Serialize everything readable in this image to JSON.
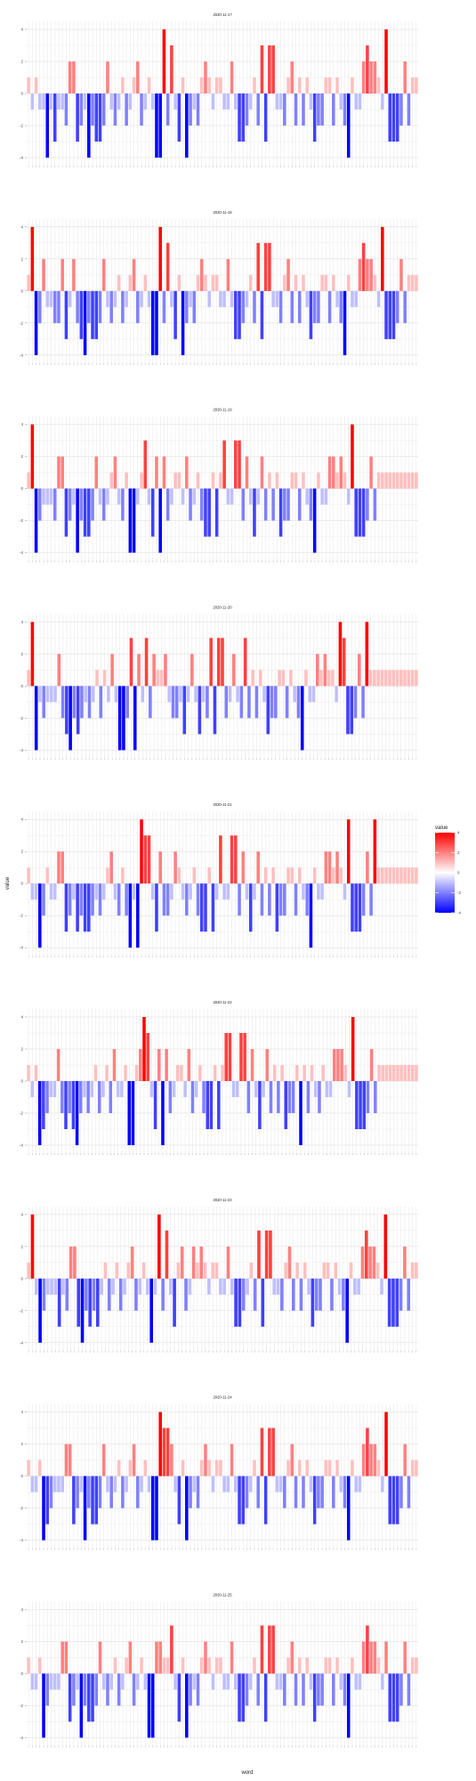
{
  "figure": {
    "xlabel": "word",
    "ylabel": "value",
    "legend": {
      "title": "value",
      "ticks": [
        4,
        2,
        0,
        -2,
        -4
      ],
      "position": "right",
      "low_color": "#0000ff",
      "mid_color": "#ffffff",
      "high_color": "#ff0000"
    }
  },
  "chart_data": [
    {
      "type": "bar",
      "title": "2020-11-17",
      "ylim": [
        -4.5,
        4.5
      ],
      "yticks": [
        4,
        2,
        0,
        -2,
        -4
      ],
      "grid": true,
      "categories_n": 104,
      "values": [
        1,
        -1,
        1,
        -1,
        -1,
        -4,
        -1,
        -3,
        -1,
        -1,
        -2,
        2,
        2,
        -3,
        -2,
        -1,
        -4,
        -2,
        -3,
        -3,
        -2,
        2,
        -1,
        -2,
        -1,
        1,
        -2,
        -1,
        1,
        2,
        -2,
        -1,
        1,
        -1,
        -4,
        -4,
        4,
        -2,
        3,
        -1,
        -3,
        1,
        -4,
        -2,
        -1,
        -2,
        1,
        2,
        1,
        -1,
        1,
        1,
        -1,
        -1,
        2,
        -1,
        -3,
        -3,
        -2,
        -1,
        1,
        -2,
        3,
        -3,
        3,
        3,
        -1,
        -1,
        -2,
        1,
        2,
        -2,
        1,
        -2,
        1,
        -1,
        -3,
        -2,
        -2,
        1,
        1,
        -2,
        1,
        -1,
        -2,
        -4,
        1,
        -1,
        -1,
        2,
        3,
        2,
        2,
        1,
        -1,
        4,
        -3,
        -3,
        -3,
        -2,
        2,
        -2,
        1,
        1
      ]
    },
    {
      "type": "bar",
      "title": "2020-11-18",
      "ylim": [
        -4.5,
        4.5
      ],
      "yticks": [
        4,
        2,
        0,
        -2,
        -4
      ],
      "grid": true,
      "categories_n": 104,
      "values": [
        1,
        4,
        -4,
        -2,
        2,
        -1,
        -1,
        -2,
        -2,
        2,
        -3,
        -1,
        2,
        -2,
        -3,
        -4,
        -2,
        -3,
        -3,
        -2,
        2,
        -1,
        -2,
        -1,
        1,
        -2,
        -1,
        1,
        2,
        -2,
        -1,
        1,
        -1,
        -4,
        -4,
        4,
        -2,
        3,
        -1,
        -3,
        1,
        -4,
        -2,
        -1,
        -2,
        1,
        2,
        1,
        -1,
        1,
        1,
        -1,
        -1,
        2,
        -1,
        -3,
        -3,
        -2,
        -1,
        1,
        -2,
        3,
        -3,
        3,
        3,
        -1,
        -1,
        -2,
        1,
        2,
        -2,
        1,
        -2,
        1,
        -1,
        -3,
        -2,
        -2,
        1,
        1,
        -2,
        1,
        -1,
        -2,
        -4,
        1,
        -1,
        -1,
        2,
        3,
        2,
        2,
        1,
        -1,
        4,
        -3,
        -3,
        -3,
        -2,
        2,
        -2,
        1,
        1,
        1
      ]
    },
    {
      "type": "bar",
      "title": "2020-11-19",
      "ylim": [
        -4.5,
        4.5
      ],
      "yticks": [
        4,
        2,
        0,
        -2,
        -4
      ],
      "grid": true,
      "categories_n": 104,
      "values": [
        1,
        4,
        -4,
        -2,
        -1,
        -1,
        -1,
        -2,
        2,
        2,
        -3,
        -2,
        -1,
        -4,
        -2,
        -3,
        -3,
        -2,
        2,
        -1,
        -2,
        -1,
        1,
        2,
        -1,
        -2,
        1,
        -4,
        -4,
        -1,
        1,
        3,
        -1,
        -3,
        2,
        -4,
        2,
        -2,
        -1,
        1,
        1,
        -1,
        2,
        -2,
        -1,
        1,
        -2,
        -3,
        -3,
        1,
        -3,
        1,
        3,
        -1,
        -1,
        3,
        3,
        -2,
        2,
        -1,
        -3,
        -1,
        2,
        -2,
        1,
        -2,
        1,
        -3,
        -2,
        -2,
        1,
        1,
        -2,
        1,
        -1,
        -2,
        -4,
        1,
        -1,
        -1,
        2,
        2,
        1,
        2,
        1,
        -1,
        4,
        -3,
        -3,
        -3,
        -2,
        2,
        -2,
        1,
        1,
        1,
        1,
        1,
        1,
        1,
        1,
        1,
        1,
        1
      ]
    },
    {
      "type": "bar",
      "title": "2020-11-20",
      "ylim": [
        -4.5,
        4.5
      ],
      "yticks": [
        4,
        2,
        0,
        -2,
        -4
      ],
      "grid": true,
      "categories_n": 104,
      "values": [
        1,
        4,
        -4,
        -1,
        -2,
        -1,
        -1,
        -1,
        2,
        -2,
        -3,
        -4,
        -2,
        -3,
        -2,
        -1,
        -2,
        -1,
        1,
        -2,
        1,
        -1,
        2,
        -1,
        -4,
        -4,
        -2,
        3,
        -4,
        2,
        -1,
        3,
        -2,
        2,
        1,
        1,
        2,
        -1,
        -2,
        -2,
        -1,
        -3,
        -1,
        2,
        -1,
        -3,
        -1,
        -2,
        3,
        -3,
        3,
        3,
        -2,
        -1,
        2,
        -1,
        -2,
        3,
        -2,
        1,
        -2,
        1,
        -1,
        -3,
        -2,
        -2,
        1,
        1,
        -2,
        1,
        -1,
        -2,
        -4,
        1,
        -1,
        -1,
        2,
        1,
        2,
        1,
        1,
        -1,
        4,
        3,
        -3,
        -3,
        -2,
        2,
        -2,
        4,
        1,
        1,
        1,
        1,
        1,
        1,
        1,
        1,
        1,
        1,
        1,
        1,
        1
      ]
    },
    {
      "type": "bar",
      "title": "2020-11-21",
      "ylim": [
        -4.5,
        4.5
      ],
      "yticks": [
        4,
        2,
        0,
        -2,
        -4
      ],
      "grid": true,
      "categories_n": 104,
      "values": [
        1,
        -1,
        -1,
        -4,
        -2,
        1,
        -1,
        -1,
        2,
        2,
        -3,
        -2,
        -1,
        -3,
        -2,
        -3,
        -3,
        -2,
        -1,
        -2,
        -1,
        1,
        2,
        -1,
        -2,
        1,
        -2,
        -4,
        -1,
        -4,
        4,
        3,
        3,
        -1,
        -3,
        2,
        -2,
        -2,
        -1,
        2,
        1,
        -1,
        -2,
        -1,
        1,
        -2,
        -3,
        -3,
        1,
        -3,
        -1,
        3,
        -1,
        -1,
        3,
        3,
        -2,
        2,
        -1,
        -3,
        -1,
        2,
        -2,
        1,
        -2,
        1,
        -3,
        -2,
        -2,
        1,
        1,
        -2,
        1,
        -1,
        -2,
        -4,
        1,
        -1,
        -1,
        2,
        2,
        1,
        2,
        1,
        -1,
        4,
        -3,
        -3,
        -3,
        -2,
        2,
        -2,
        4,
        1,
        1,
        1,
        1,
        1,
        1,
        1,
        1,
        1,
        1,
        1
      ]
    },
    {
      "type": "bar",
      "title": "2020-11-22",
      "ylim": [
        -4.5,
        4.5
      ],
      "yticks": [
        4,
        2,
        0,
        -2,
        -4
      ],
      "grid": true,
      "categories_n": 104,
      "values": [
        1,
        -1,
        1,
        -4,
        -3,
        -2,
        -1,
        -1,
        2,
        -2,
        -3,
        -2,
        -3,
        -4,
        -2,
        -1,
        -2,
        -1,
        1,
        -2,
        -1,
        1,
        -2,
        2,
        -1,
        -1,
        1,
        -4,
        -4,
        1,
        2,
        4,
        3,
        -1,
        -3,
        2,
        -4,
        2,
        -2,
        -1,
        1,
        1,
        -1,
        2,
        -2,
        -1,
        1,
        -2,
        -3,
        -3,
        1,
        -3,
        1,
        3,
        3,
        -1,
        -1,
        3,
        3,
        -2,
        2,
        -1,
        -3,
        -1,
        2,
        -2,
        1,
        -2,
        1,
        -3,
        -2,
        -2,
        1,
        -4,
        1,
        -2,
        1,
        -1,
        -2,
        1,
        -1,
        -1,
        2,
        2,
        2,
        1,
        -1,
        4,
        -3,
        -3,
        -3,
        -2,
        2,
        -2,
        1,
        1,
        1,
        1,
        1,
        1,
        1,
        1,
        1,
        1,
        1
      ]
    },
    {
      "type": "bar",
      "title": "2020-11-23",
      "ylim": [
        -4.5,
        4.5
      ],
      "yticks": [
        4,
        2,
        0,
        -2,
        -4
      ],
      "grid": true,
      "categories_n": 104,
      "values": [
        1,
        4,
        -1,
        -4,
        -2,
        -1,
        -1,
        -1,
        -3,
        -1,
        -2,
        2,
        2,
        -3,
        -4,
        -2,
        -3,
        -2,
        -3,
        -1,
        1,
        -2,
        -1,
        1,
        -2,
        -1,
        1,
        2,
        -2,
        -1,
        1,
        -1,
        -4,
        -1,
        4,
        -2,
        3,
        -1,
        -3,
        1,
        2,
        -2,
        -1,
        2,
        1,
        2,
        1,
        -1,
        1,
        1,
        -1,
        -1,
        2,
        -1,
        -3,
        -3,
        -2,
        -1,
        1,
        -2,
        3,
        -3,
        3,
        3,
        -1,
        -1,
        -2,
        1,
        2,
        -2,
        1,
        -2,
        1,
        -1,
        -3,
        -2,
        -2,
        1,
        1,
        -2,
        1,
        -1,
        -2,
        -4,
        1,
        -1,
        -1,
        2,
        3,
        2,
        2,
        1,
        -1,
        4,
        -3,
        -3,
        -3,
        -2,
        2,
        -2,
        1,
        1
      ]
    },
    {
      "type": "bar",
      "title": "2020-11-24",
      "ylim": [
        -4.5,
        4.5
      ],
      "yticks": [
        4,
        2,
        0,
        -2,
        -4
      ],
      "grid": true,
      "categories_n": 104,
      "values": [
        1,
        -1,
        -1,
        1,
        -4,
        -3,
        -2,
        -1,
        -1,
        -1,
        2,
        2,
        -3,
        -2,
        -1,
        -4,
        -2,
        -3,
        -3,
        -2,
        2,
        -1,
        -2,
        -1,
        1,
        -2,
        -1,
        1,
        2,
        -2,
        -1,
        1,
        -1,
        -4,
        -4,
        4,
        3,
        3,
        2,
        -1,
        -3,
        1,
        -4,
        -2,
        -1,
        -2,
        1,
        2,
        1,
        -1,
        1,
        1,
        -1,
        -1,
        2,
        -1,
        -3,
        -3,
        -2,
        -1,
        1,
        -2,
        3,
        -3,
        3,
        3,
        -1,
        -1,
        -2,
        1,
        2,
        -2,
        1,
        -2,
        1,
        -1,
        -3,
        -2,
        -2,
        1,
        1,
        -2,
        1,
        -1,
        -2,
        -4,
        1,
        -1,
        -1,
        2,
        3,
        2,
        2,
        1,
        -1,
        4,
        -3,
        -3,
        -3,
        -2,
        2,
        -2,
        1,
        1
      ]
    },
    {
      "type": "bar",
      "title": "2020-11-25",
      "ylim": [
        -4.5,
        4.5
      ],
      "yticks": [
        4,
        2,
        0,
        -2,
        -4
      ],
      "grid": true,
      "categories_n": 104,
      "values": [
        1,
        -1,
        -1,
        1,
        -4,
        -2,
        -1,
        -1,
        -1,
        2,
        2,
        -3,
        -2,
        -1,
        -4,
        -2,
        -3,
        -3,
        -2,
        2,
        -1,
        -2,
        -1,
        1,
        -2,
        -1,
        1,
        2,
        -2,
        -1,
        1,
        -1,
        -4,
        -4,
        2,
        2,
        1,
        1,
        3,
        -1,
        -3,
        1,
        -4,
        -2,
        -1,
        -2,
        1,
        2,
        1,
        -1,
        1,
        1,
        -1,
        -1,
        2,
        -1,
        -3,
        -3,
        -2,
        -1,
        1,
        -2,
        3,
        -3,
        3,
        3,
        -1,
        -1,
        -2,
        1,
        2,
        -2,
        1,
        -2,
        1,
        -1,
        -3,
        -2,
        -2,
        1,
        1,
        -2,
        1,
        -1,
        -2,
        -4,
        1,
        -1,
        -1,
        2,
        3,
        2,
        2,
        1,
        -1,
        2,
        -3,
        -3,
        -3,
        -2,
        2,
        -2,
        1,
        1
      ]
    }
  ]
}
